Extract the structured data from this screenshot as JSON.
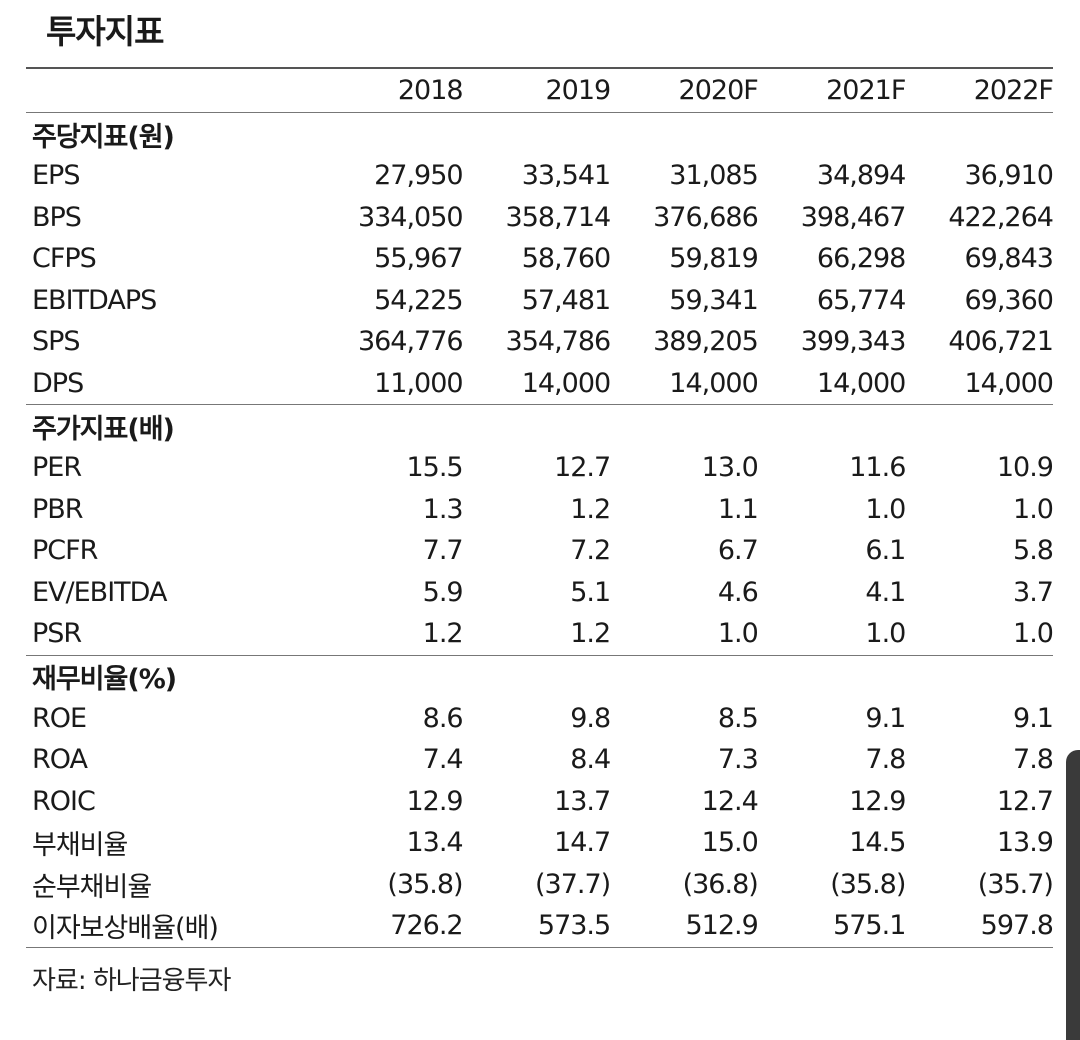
{
  "title": "투자지표",
  "years": [
    "2018",
    "2019",
    "2020F",
    "2021F",
    "2022F"
  ],
  "sections": [
    {
      "name": "주당지표(원)",
      "rows": [
        {
          "label": "EPS",
          "values": [
            "27,950",
            "33,541",
            "31,085",
            "34,894",
            "36,910"
          ]
        },
        {
          "label": "BPS",
          "values": [
            "334,050",
            "358,714",
            "376,686",
            "398,467",
            "422,264"
          ]
        },
        {
          "label": "CFPS",
          "values": [
            "55,967",
            "58,760",
            "59,819",
            "66,298",
            "69,843"
          ]
        },
        {
          "label": "EBITDAPS",
          "values": [
            "54,225",
            "57,481",
            "59,341",
            "65,774",
            "69,360"
          ]
        },
        {
          "label": "SPS",
          "values": [
            "364,776",
            "354,786",
            "389,205",
            "399,343",
            "406,721"
          ]
        },
        {
          "label": "DPS",
          "values": [
            "11,000",
            "14,000",
            "14,000",
            "14,000",
            "14,000"
          ]
        }
      ]
    },
    {
      "name": "주가지표(배)",
      "rows": [
        {
          "label": "PER",
          "values": [
            "15.5",
            "12.7",
            "13.0",
            "11.6",
            "10.9"
          ]
        },
        {
          "label": "PBR",
          "values": [
            "1.3",
            "1.2",
            "1.1",
            "1.0",
            "1.0"
          ]
        },
        {
          "label": "PCFR",
          "values": [
            "7.7",
            "7.2",
            "6.7",
            "6.1",
            "5.8"
          ]
        },
        {
          "label": "EV/EBITDA",
          "values": [
            "5.9",
            "5.1",
            "4.6",
            "4.1",
            "3.7"
          ]
        },
        {
          "label": "PSR",
          "values": [
            "1.2",
            "1.2",
            "1.0",
            "1.0",
            "1.0"
          ]
        }
      ]
    },
    {
      "name": "재무비율(%)",
      "rows": [
        {
          "label": "ROE",
          "values": [
            "8.6",
            "9.8",
            "8.5",
            "9.1",
            "9.1"
          ]
        },
        {
          "label": "ROA",
          "values": [
            "7.4",
            "8.4",
            "7.3",
            "7.8",
            "7.8"
          ]
        },
        {
          "label": "ROIC",
          "values": [
            "12.9",
            "13.7",
            "12.4",
            "12.9",
            "12.7"
          ]
        },
        {
          "label": "부채비율",
          "values": [
            "13.4",
            "14.7",
            "15.0",
            "14.5",
            "13.9"
          ]
        },
        {
          "label": "순부채비율",
          "values": [
            "(35.8)",
            "(37.7)",
            "(36.8)",
            "(35.8)",
            "(35.7)"
          ]
        },
        {
          "label": "이자보상배율(배)",
          "values": [
            "726.2",
            "573.5",
            "512.9",
            "575.1",
            "597.8"
          ]
        }
      ]
    }
  ],
  "source": "자료: 하나금융투자"
}
